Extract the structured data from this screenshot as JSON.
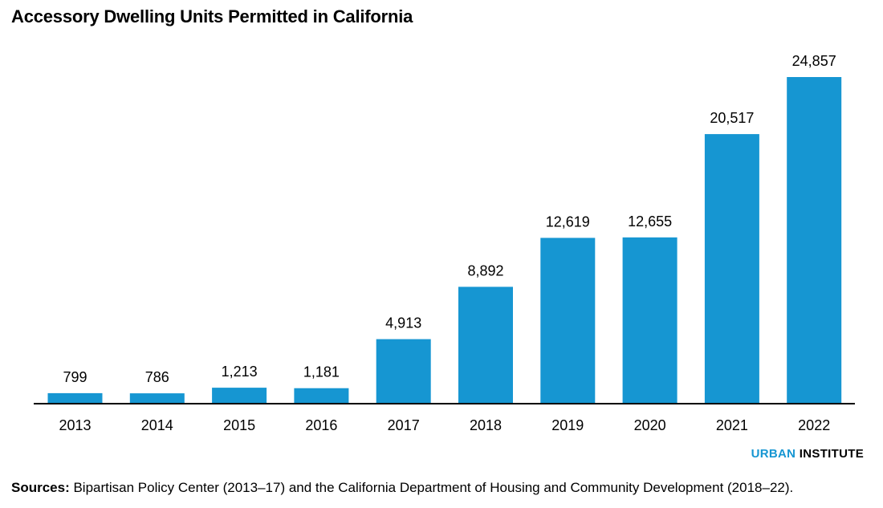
{
  "chart_data": {
    "type": "bar",
    "title": "Accessory Dwelling Units Permitted in California",
    "categories": [
      "2013",
      "2014",
      "2015",
      "2016",
      "2017",
      "2018",
      "2019",
      "2020",
      "2021",
      "2022"
    ],
    "values": [
      799,
      786,
      1213,
      1181,
      4913,
      8892,
      12619,
      12655,
      20517,
      24857
    ],
    "value_labels": [
      "799",
      "786",
      "1,213",
      "1,181",
      "4,913",
      "8,892",
      "12,619",
      "12,655",
      "20,517",
      "24,857"
    ],
    "xlabel": "",
    "ylabel": "",
    "ylim": [
      0,
      25000
    ],
    "grid": false,
    "bar_color": "#1696d2"
  },
  "branding": {
    "accent": "URBAN",
    "rest": "INSTITUTE",
    "accent_color": "#1696d2"
  },
  "source": {
    "label": "Sources:",
    "text": " Bipartisan Policy Center (2013–17) and the California Department of Housing and Community Development (2018–22)."
  }
}
